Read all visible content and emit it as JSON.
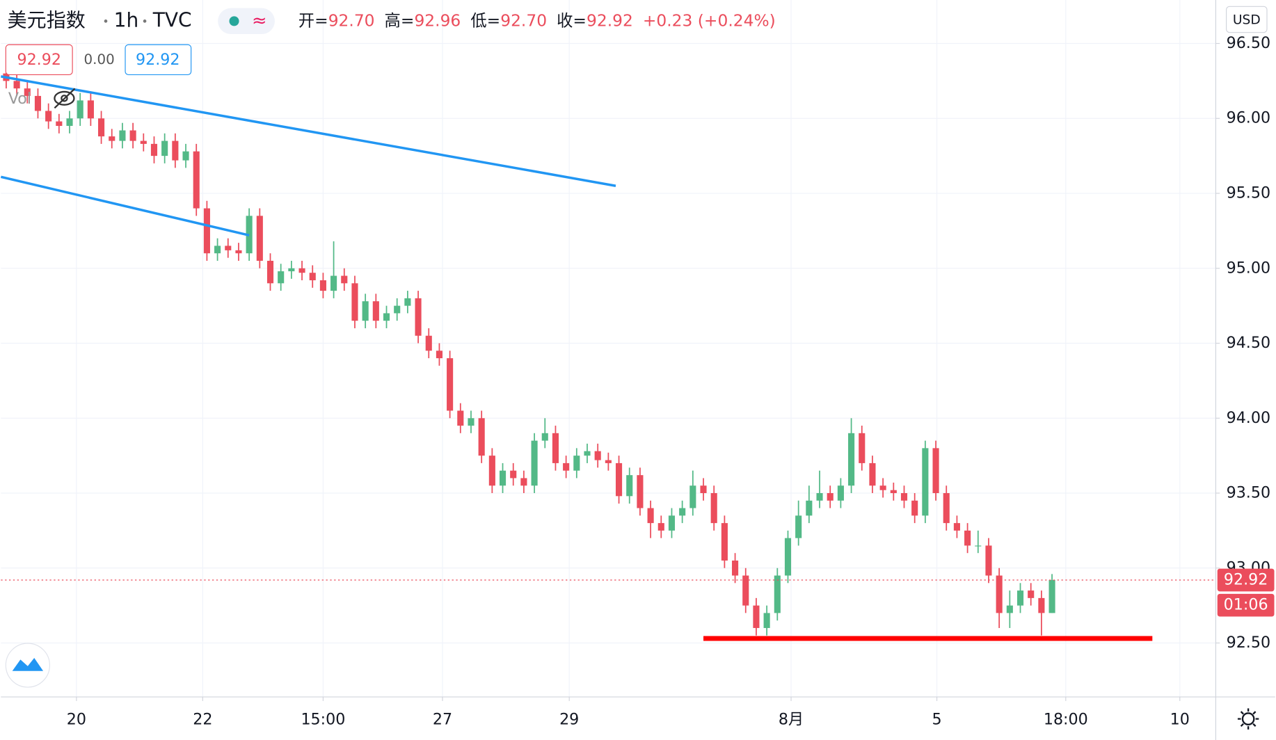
{
  "chart_data": {
    "type": "candlestick",
    "title": "美元指数",
    "interval": "1h",
    "source": "TVC",
    "indicator_icon": "≈",
    "ohlc_legend": [
      {
        "label": "开=",
        "value": "92.70"
      },
      {
        "label": "高=",
        "value": "92.96"
      },
      {
        "label": "低=",
        "value": "92.70"
      },
      {
        "label": "收=",
        "value": "92.92"
      },
      {
        "label": "",
        "value": "+0.23 (+0.24%)"
      }
    ],
    "inputs": [
      "92.92",
      "0.00",
      "92.92"
    ],
    "volume_label": "Vol",
    "currency": "USD",
    "countdown": "01:06",
    "up_color": "#53b987",
    "down_color": "#eb4d5c",
    "open": [
      96.3,
      96.25,
      96.2,
      96.15,
      96.05,
      95.98,
      95.95,
      96.0,
      96.12,
      96.0,
      95.88,
      95.85,
      95.92,
      95.85,
      95.83,
      95.75,
      95.85,
      95.72,
      95.78,
      95.4,
      95.1,
      95.15,
      95.12,
      95.1,
      95.35,
      95.05,
      94.9,
      94.98,
      95.0,
      94.97,
      94.92,
      94.85,
      94.95,
      94.9,
      94.65,
      94.78,
      94.65,
      94.7,
      94.75,
      94.8,
      94.55,
      94.45,
      94.4,
      94.05,
      93.95,
      94.0,
      93.75,
      93.55,
      93.65,
      93.6,
      93.55,
      93.85,
      93.9,
      93.7,
      93.65,
      93.75,
      93.78,
      93.72,
      93.7,
      93.48,
      93.62,
      93.4,
      93.3,
      93.25,
      93.35,
      93.4,
      93.55,
      93.5,
      93.3,
      93.05,
      92.95,
      92.75,
      92.6,
      92.7,
      92.95,
      93.2,
      93.35,
      93.45,
      93.5,
      93.45,
      93.55,
      93.9,
      93.7,
      93.55,
      93.52,
      93.5,
      93.45,
      93.35,
      93.8,
      93.5,
      93.3,
      93.25,
      93.15,
      93.15,
      92.95,
      92.7,
      92.75,
      92.85,
      92.8,
      92.7
    ],
    "high": [
      96.35,
      96.3,
      96.25,
      96.2,
      96.1,
      96.03,
      96.05,
      96.17,
      96.17,
      96.05,
      95.93,
      95.97,
      95.97,
      95.9,
      95.88,
      95.9,
      95.9,
      95.83,
      95.83,
      95.45,
      95.2,
      95.2,
      95.17,
      95.4,
      95.4,
      95.1,
      95.03,
      95.05,
      95.05,
      95.02,
      94.97,
      95.18,
      95.0,
      94.95,
      94.83,
      94.83,
      94.75,
      94.8,
      94.85,
      94.85,
      94.6,
      94.5,
      94.45,
      94.1,
      94.05,
      94.05,
      93.8,
      93.7,
      93.7,
      93.65,
      93.9,
      94.0,
      93.95,
      93.75,
      93.8,
      93.83,
      93.83,
      93.77,
      93.75,
      93.67,
      93.67,
      93.45,
      93.35,
      93.4,
      93.45,
      93.65,
      93.6,
      93.55,
      93.35,
      93.1,
      93.0,
      92.8,
      92.75,
      93.0,
      93.25,
      93.45,
      93.55,
      93.65,
      93.55,
      93.6,
      94.0,
      93.95,
      93.75,
      93.6,
      93.57,
      93.55,
      93.5,
      93.85,
      93.85,
      93.55,
      93.35,
      93.3,
      93.25,
      93.2,
      93.0,
      92.85,
      92.9,
      92.9,
      92.85,
      92.96
    ],
    "low": [
      96.2,
      96.15,
      96.1,
      96.0,
      95.93,
      95.9,
      95.9,
      95.95,
      95.95,
      95.83,
      95.8,
      95.8,
      95.8,
      95.78,
      95.7,
      95.7,
      95.67,
      95.67,
      95.35,
      95.05,
      95.05,
      95.07,
      95.05,
      95.05,
      95.0,
      94.85,
      94.85,
      94.93,
      94.92,
      94.87,
      94.8,
      94.8,
      94.85,
      94.6,
      94.6,
      94.6,
      94.6,
      94.65,
      94.7,
      94.5,
      94.4,
      94.35,
      94.0,
      93.9,
      93.9,
      93.7,
      93.5,
      93.5,
      93.55,
      93.5,
      93.5,
      93.8,
      93.65,
      93.6,
      93.6,
      93.7,
      93.67,
      93.65,
      93.43,
      93.43,
      93.35,
      93.2,
      93.2,
      93.2,
      93.3,
      93.35,
      93.45,
      93.25,
      93.0,
      92.9,
      92.7,
      92.55,
      92.55,
      92.65,
      92.9,
      93.15,
      93.3,
      93.4,
      93.4,
      93.4,
      93.5,
      93.65,
      93.5,
      93.47,
      93.45,
      93.4,
      93.3,
      93.3,
      93.45,
      93.25,
      93.2,
      93.1,
      93.1,
      92.9,
      92.6,
      92.6,
      92.7,
      92.75,
      92.55,
      92.7
    ],
    "close": [
      96.25,
      96.2,
      96.15,
      96.05,
      95.98,
      95.95,
      96.0,
      96.12,
      96.0,
      95.88,
      95.85,
      95.92,
      95.85,
      95.83,
      95.75,
      95.85,
      95.72,
      95.78,
      95.4,
      95.1,
      95.15,
      95.12,
      95.1,
      95.35,
      95.05,
      94.9,
      94.98,
      95.0,
      94.97,
      94.92,
      94.85,
      94.95,
      94.9,
      94.65,
      94.78,
      94.65,
      94.7,
      94.75,
      94.8,
      94.55,
      94.45,
      94.4,
      94.05,
      93.95,
      94.0,
      93.75,
      93.55,
      93.65,
      93.6,
      93.55,
      93.85,
      93.9,
      93.7,
      93.65,
      93.75,
      93.78,
      93.72,
      93.7,
      93.48,
      93.62,
      93.4,
      93.3,
      93.25,
      93.35,
      93.4,
      93.55,
      93.5,
      93.3,
      93.05,
      92.95,
      92.75,
      92.6,
      92.7,
      92.95,
      93.2,
      93.35,
      93.45,
      93.5,
      93.45,
      93.55,
      93.9,
      93.7,
      93.55,
      93.52,
      93.5,
      93.45,
      93.35,
      93.8,
      93.5,
      93.3,
      93.25,
      93.15,
      93.15,
      92.95,
      92.7,
      92.75,
      92.85,
      92.8,
      92.7,
      92.92
    ],
    "xlim": [
      0,
      115
    ],
    "xticks": [
      {
        "value": 7.15,
        "label": "20"
      },
      {
        "value": 19.1,
        "label": "22"
      },
      {
        "value": 30.5,
        "label": "15:00"
      },
      {
        "value": 41.8,
        "label": "27"
      },
      {
        "value": 53.8,
        "label": "29"
      },
      {
        "value": 74.8,
        "label": "8月"
      },
      {
        "value": 88.6,
        "label": "5"
      },
      {
        "value": 100.8,
        "label": "18:00"
      },
      {
        "value": 111.6,
        "label": "10"
      }
    ],
    "ylim": [
      92.14,
      96.79
    ],
    "yticks": [
      {
        "value": 92.5,
        "label": "92.50"
      },
      {
        "value": 93,
        "label": "93.00"
      },
      {
        "value": 93.5,
        "label": "93.50"
      },
      {
        "value": 94,
        "label": "94.00"
      },
      {
        "value": 94.5,
        "label": "94.50"
      },
      {
        "value": 95,
        "label": "95.00"
      },
      {
        "value": 95.5,
        "label": "95.50"
      },
      {
        "value": 96,
        "label": "96.00"
      },
      {
        "value": 96.5,
        "label": "96.50"
      }
    ],
    "grid": true,
    "drawings": [
      {
        "x": [
          0,
          58.2
        ],
        "y": [
          96.28,
          95.55
        ],
        "color": "#2196f3"
      },
      {
        "x": [
          0,
          23.5
        ],
        "y": [
          95.61,
          95.22
        ],
        "color": "#2196f3"
      },
      {
        "x": [
          66.5,
          109
        ],
        "y": [
          92.53,
          92.53
        ],
        "color": "#ff0000"
      }
    ]
  }
}
